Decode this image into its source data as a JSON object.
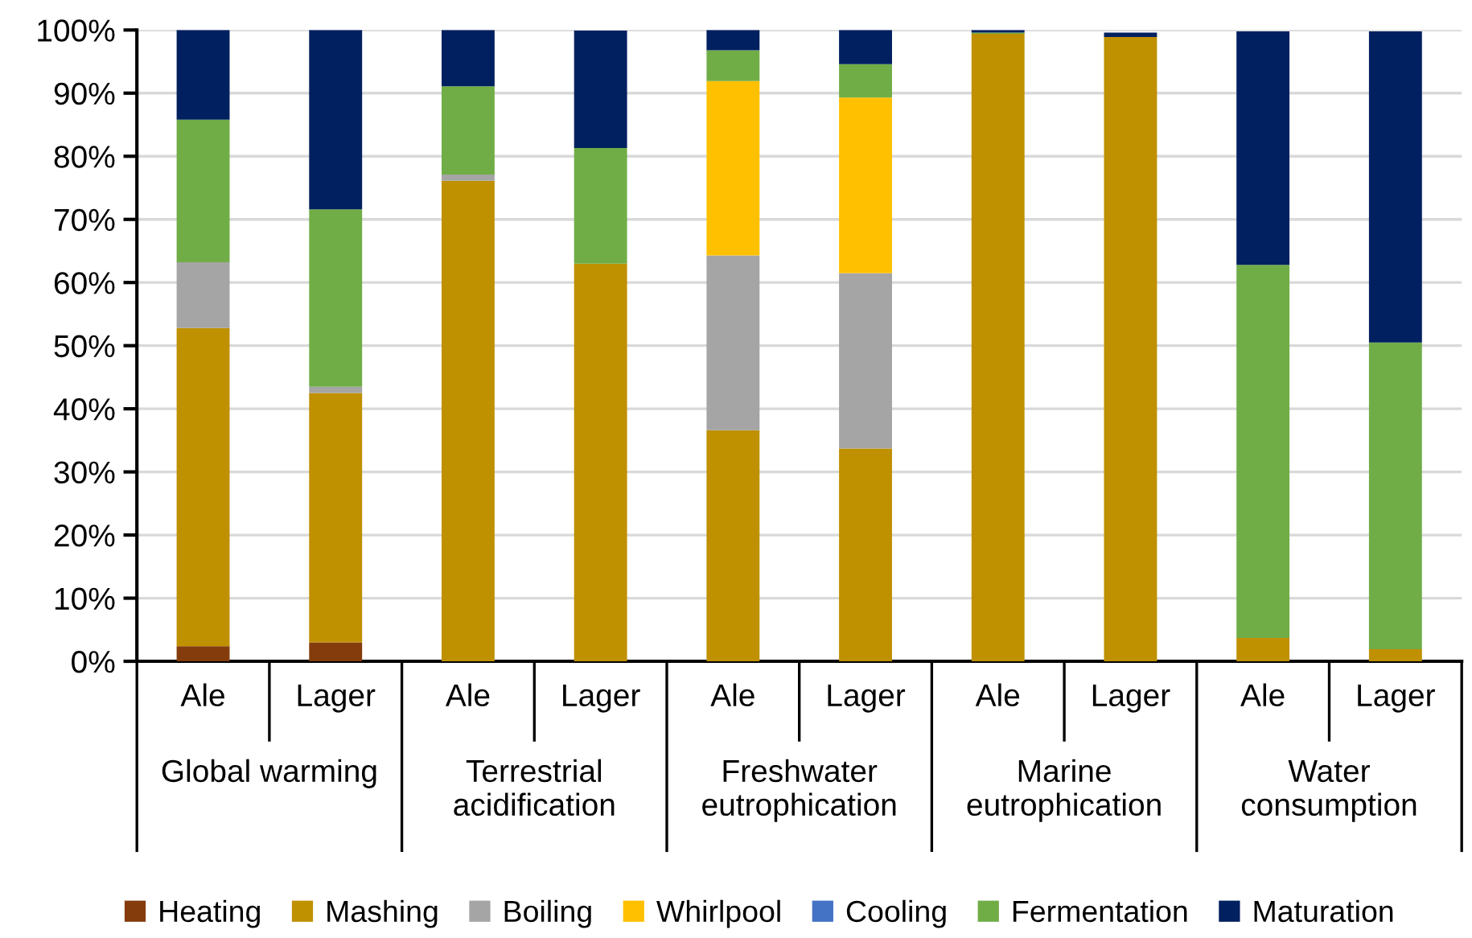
{
  "chart_data": {
    "type": "bar",
    "stacked": true,
    "categories": [
      "Ale",
      "Lager",
      "Ale",
      "Lager",
      "Ale",
      "Lager",
      "Ale",
      "Lager",
      "Ale",
      "Lager"
    ],
    "annotations": [
      "Global warming",
      "Terrestrial acidification",
      "Freshwater eutrophication",
      "Marine eutrophication",
      "Water consumption"
    ],
    "series": [
      {
        "name": "Heating",
        "color": "#843c0c",
        "values": [
          2.4,
          3.0,
          0,
          0,
          0,
          0,
          0,
          0,
          0,
          0
        ]
      },
      {
        "name": "Mashing",
        "color": "#bf9000",
        "values": [
          50.4,
          39.5,
          76.1,
          63.0,
          36.6,
          33.7,
          99.4,
          98.9,
          3.7,
          1.9
        ]
      },
      {
        "name": "Boiling",
        "color": "#a5a5a5",
        "values": [
          10.4,
          1.0,
          1.0,
          null,
          27.7,
          27.8,
          0,
          null,
          null,
          null
        ]
      },
      {
        "name": "Whirlpool",
        "color": "#ffc000",
        "values": [
          0,
          0,
          0,
          0,
          27.6,
          27.8,
          0,
          0,
          0,
          0
        ]
      },
      {
        "name": "Cooling",
        "color": "#4472c4",
        "values": [
          0,
          0,
          0,
          0,
          0,
          0,
          0,
          0,
          0,
          0
        ]
      },
      {
        "name": "Fermentation",
        "color": "#70ad47",
        "values": [
          22.6,
          28.1,
          14.0,
          18.3,
          4.9,
          5.3,
          0.2,
          0,
          59.1,
          48.6
        ]
      },
      {
        "name": "Maturation",
        "color": "#002060",
        "values": [
          14.2,
          28.4,
          8.9,
          18.6,
          3.2,
          5.4,
          0.4,
          0.7,
          37.0,
          49.3
        ]
      }
    ],
    "ylim": [
      0,
      100
    ],
    "yticks": [
      {
        "value": 0,
        "label": "0%"
      },
      {
        "value": 10,
        "label": "10%"
      },
      {
        "value": 20,
        "label": "20%"
      },
      {
        "value": 30,
        "label": "30%"
      },
      {
        "value": 40,
        "label": "40%"
      },
      {
        "value": 50,
        "label": "50%"
      },
      {
        "value": 60,
        "label": "60%"
      },
      {
        "value": 70,
        "label": "70%"
      },
      {
        "value": 80,
        "label": "80%"
      },
      {
        "value": 90,
        "label": "90%"
      },
      {
        "value": 100,
        "label": "100%"
      }
    ],
    "grid": "y",
    "legend": "bottom"
  }
}
